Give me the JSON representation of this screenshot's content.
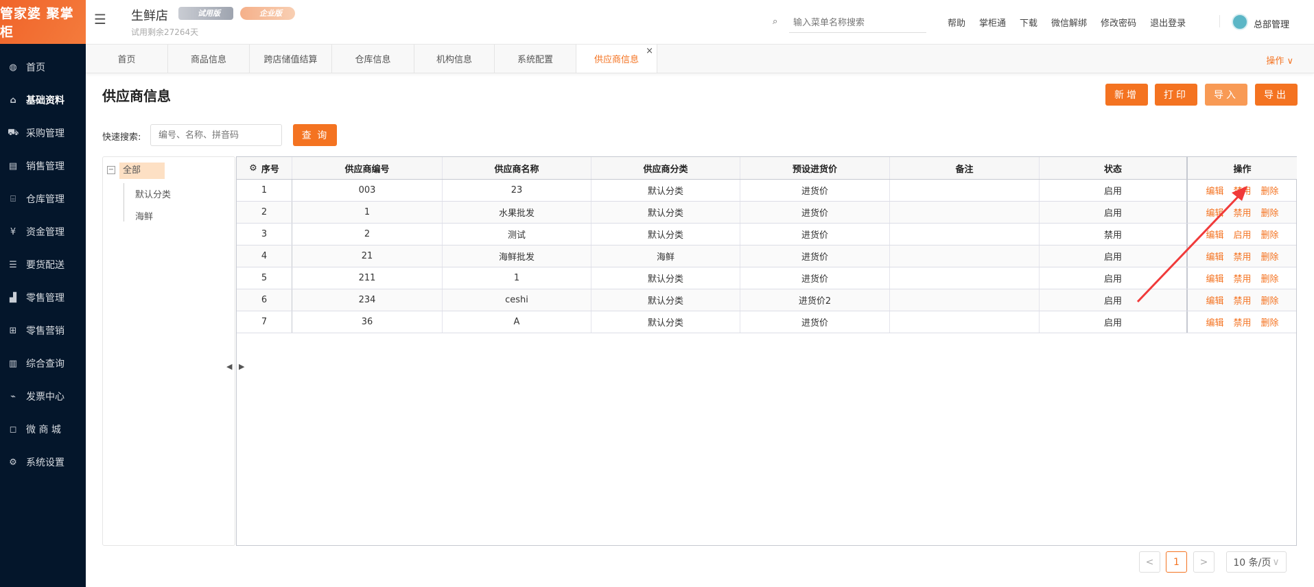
{
  "logo": "管家婆 聚掌柜",
  "sidebar": {
    "items": [
      {
        "label": "首页",
        "icon": "globe-icon",
        "glyph": "◍"
      },
      {
        "label": "基础资料",
        "icon": "home-icon",
        "glyph": "⌂"
      },
      {
        "label": "采购管理",
        "icon": "cart-icon",
        "glyph": "⛟"
      },
      {
        "label": "销售管理",
        "icon": "calendar-check-icon",
        "glyph": "▤"
      },
      {
        "label": "仓库管理",
        "icon": "bank-icon",
        "glyph": "⌸"
      },
      {
        "label": "资金管理",
        "icon": "yen-icon",
        "glyph": "¥"
      },
      {
        "label": "要货配送",
        "icon": "list-icon",
        "glyph": "☰"
      },
      {
        "label": "零售管理",
        "icon": "area-chart-icon",
        "glyph": "▟"
      },
      {
        "label": "零售营销",
        "icon": "gift-icon",
        "glyph": "⊞"
      },
      {
        "label": "综合查询",
        "icon": "bar-chart-icon",
        "glyph": "▥"
      },
      {
        "label": "发票中心",
        "icon": "line-chart-icon",
        "glyph": "⌁"
      },
      {
        "label": "微 商 城",
        "icon": "bag-icon",
        "glyph": "◻"
      },
      {
        "label": "系统设置",
        "icon": "gear-icon",
        "glyph": "⚙"
      }
    ]
  },
  "header": {
    "store": "生鲜店",
    "trial_badge": "试用版",
    "enterprise_badge": "企业版",
    "trial_remaining": "试用剩余27264天",
    "search_placeholder": "输入菜单名称搜索",
    "links": [
      "帮助",
      "掌柜通",
      "下载",
      "微信解绑",
      "修改密码",
      "退出登录"
    ],
    "user": "总部管理"
  },
  "tabs": [
    "首页",
    "商品信息",
    "跨店储值结算",
    "仓库信息",
    "机构信息",
    "系统配置",
    "供应商信息"
  ],
  "tabs_action": "操作 ∨",
  "page": {
    "title": "供应商信息",
    "buttons": [
      "新增",
      "打印",
      "导入",
      "导出"
    ],
    "search_label": "快速搜索:",
    "search_placeholder": "编号、名称、拼音码",
    "query_button": "查 询"
  },
  "tree": {
    "root": "全部",
    "children": [
      "默认分类",
      "海鲜"
    ]
  },
  "table": {
    "columns": [
      "序号",
      "供应商编号",
      "供应商名称",
      "供应商分类",
      "预设进货价",
      "备注",
      "状态",
      "操作"
    ],
    "rows": [
      [
        "1",
        "003",
        "23",
        "默认分类",
        "进货价",
        "",
        "启用",
        [
          "编辑",
          "禁用",
          "删除"
        ]
      ],
      [
        "2",
        "1",
        "水果批发",
        "默认分类",
        "进货价",
        "",
        "启用",
        [
          "编辑",
          "禁用",
          "删除"
        ]
      ],
      [
        "3",
        "2",
        "测试",
        "默认分类",
        "进货价",
        "",
        "禁用",
        [
          "编辑",
          "启用",
          "删除"
        ]
      ],
      [
        "4",
        "21",
        "海鲜批发",
        "海鲜",
        "进货价",
        "",
        "启用",
        [
          "编辑",
          "禁用",
          "删除"
        ]
      ],
      [
        "5",
        "211",
        "1",
        "默认分类",
        "进货价",
        "",
        "启用",
        [
          "编辑",
          "禁用",
          "删除"
        ]
      ],
      [
        "6",
        "234",
        "ceshi",
        "默认分类",
        "进货价2",
        "",
        "启用",
        [
          "编辑",
          "禁用",
          "删除"
        ]
      ],
      [
        "7",
        "36",
        "A",
        "默认分类",
        "进货价",
        "",
        "启用",
        [
          "编辑",
          "禁用",
          "删除"
        ]
      ]
    ]
  },
  "pagination": {
    "prev": "<",
    "current": "1",
    "next": ">",
    "page_size": "10 条/页"
  },
  "colors": {
    "accent": "#f47321",
    "sidebar": "#04162b",
    "annotation_arrow": "#f03a3a"
  }
}
